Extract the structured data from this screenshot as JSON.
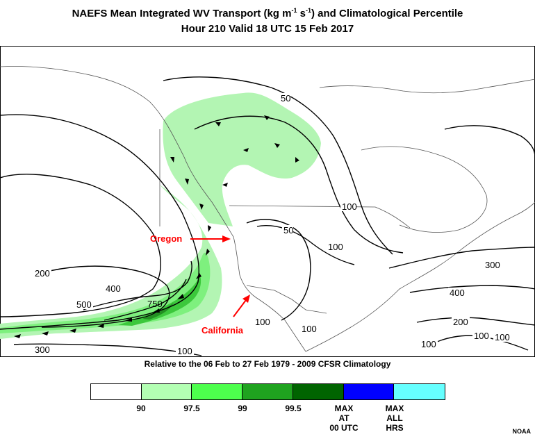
{
  "title": {
    "prefix": "NAEFS Mean Integrated WV Transport (kg m",
    "sup1": "-1",
    "mid": " s",
    "sup2": "-1",
    "suffix": ") and Climatological Percentile",
    "line2": "Hour 210 Valid 18 UTC 15 Feb 2017"
  },
  "map": {
    "contour_labels": [
      "50",
      "100",
      "100",
      "50",
      "100",
      "300",
      "400",
      "200",
      "100",
      "100",
      "100",
      "200",
      "400",
      "500",
      "750",
      "300",
      "100",
      "100"
    ],
    "annotations": {
      "oregon": "Oregon",
      "california": "California"
    },
    "colors": {
      "land_line": "#555555",
      "contour": "#000000",
      "annotation": "#ff0000",
      "p90": "#b3f5b3",
      "p975": "#7ef07e",
      "p99": "#3cc83c",
      "p995": "#238f23"
    }
  },
  "climatology_note": "Relative to the 06 Feb to 27 Feb 1979 - 2009 CFSR Climatology",
  "legend": {
    "segments": [
      {
        "color": "#ffffff"
      },
      {
        "color": "#b3ffb3"
      },
      {
        "color": "#4dff4d"
      },
      {
        "color": "#1fa31f"
      },
      {
        "color": "#006400"
      },
      {
        "color": "#0000ff"
      },
      {
        "color": "#66ffff"
      }
    ],
    "labels": [
      "90",
      "97.5",
      "99",
      "99.5",
      "MAX\nAT\n00 UTC",
      "MAX\nALL\nHRS"
    ]
  },
  "credit": "NOAA"
}
